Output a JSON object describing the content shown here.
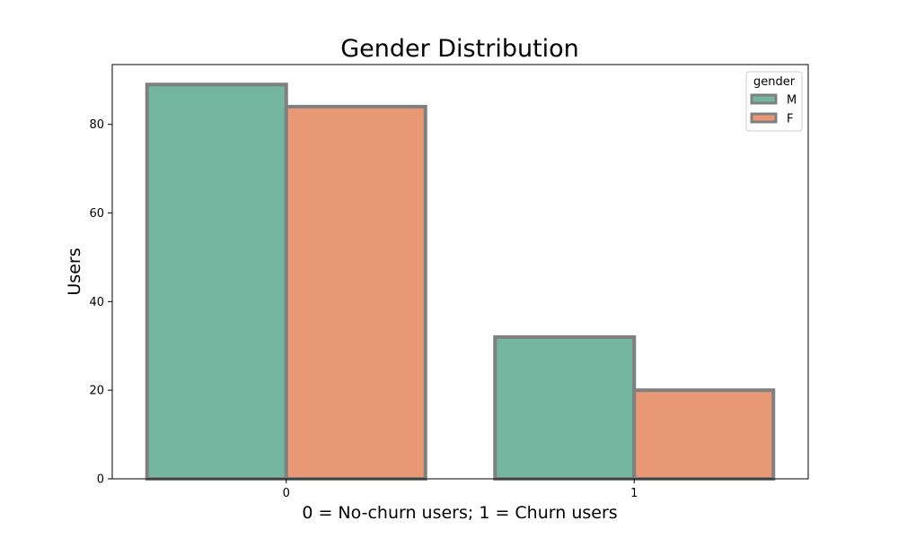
{
  "chart_data": {
    "type": "bar",
    "title": "Gender Distribution",
    "xlabel": "0 = No-churn users; 1 = Churn users",
    "ylabel": "Users",
    "categories": [
      "0",
      "1"
    ],
    "series": [
      {
        "name": "M",
        "values": [
          89,
          32
        ],
        "color": "#74b6a0"
      },
      {
        "name": "F",
        "values": [
          84,
          20
        ],
        "color": "#e89874"
      }
    ],
    "ylim": [
      0,
      93.5
    ],
    "yticks": [
      0,
      20,
      40,
      60,
      80
    ],
    "legend": {
      "title": "gender",
      "placement": "top-right"
    },
    "edge_color": "#808080",
    "grid": false
  }
}
